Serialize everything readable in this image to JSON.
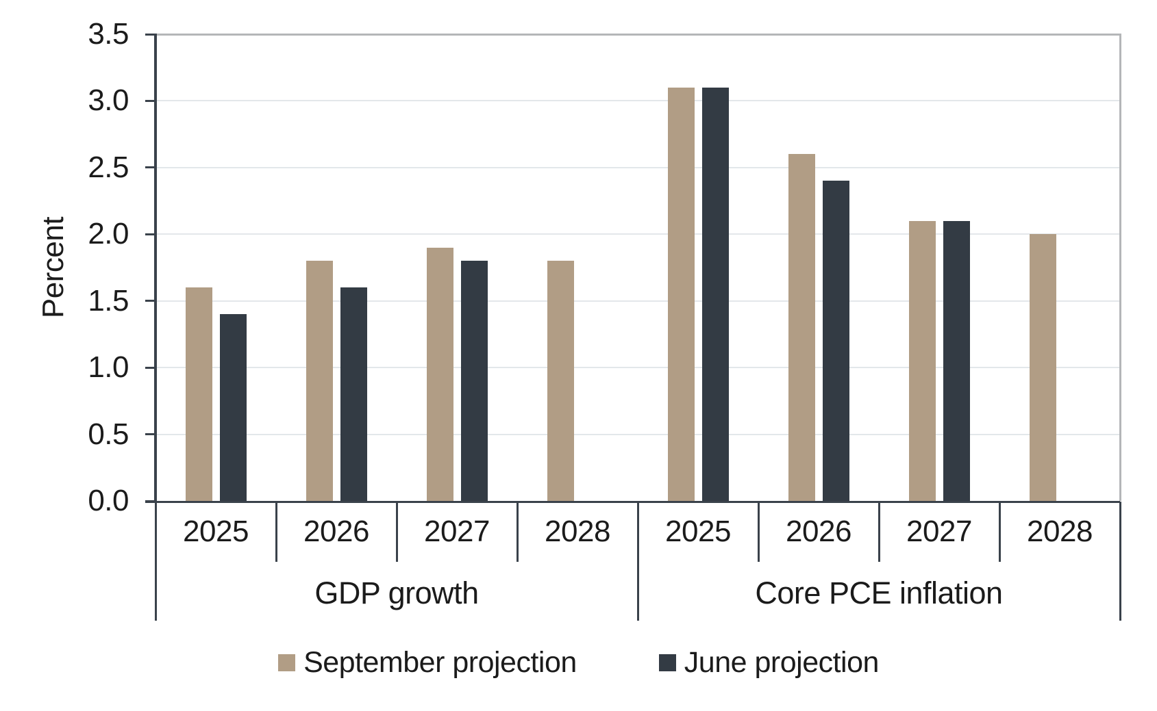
{
  "chart_data": {
    "type": "bar",
    "title": "",
    "ylabel": "Percent",
    "ylim": [
      0,
      3.5
    ],
    "ytick_labels": [
      "0.0",
      "0.5",
      "1.0",
      "1.5",
      "2.0",
      "2.5",
      "3.0",
      "3.5"
    ],
    "grid": true,
    "legend_position": "bottom",
    "groups": [
      {
        "label": "GDP growth",
        "categories": [
          "2025",
          "2026",
          "2027",
          "2028"
        ]
      },
      {
        "label": "Core PCE inflation",
        "categories": [
          "2025",
          "2026",
          "2027",
          "2028"
        ]
      }
    ],
    "series": [
      {
        "name": "September projection",
        "color": "#b19d85",
        "values": [
          [
            1.6,
            1.8,
            1.9,
            1.8
          ],
          [
            3.1,
            2.6,
            2.1,
            2.0
          ]
        ]
      },
      {
        "name": "June projection",
        "color": "#333b44",
        "values": [
          [
            1.4,
            1.6,
            1.8,
            null
          ],
          [
            3.1,
            2.4,
            2.1,
            null
          ]
        ]
      }
    ]
  },
  "colors": {
    "axis": "#3a424b",
    "gridline": "#e3e7ea",
    "frame": "#b4b6b8",
    "text": "#1b1b1b",
    "background": "#ffffff"
  }
}
